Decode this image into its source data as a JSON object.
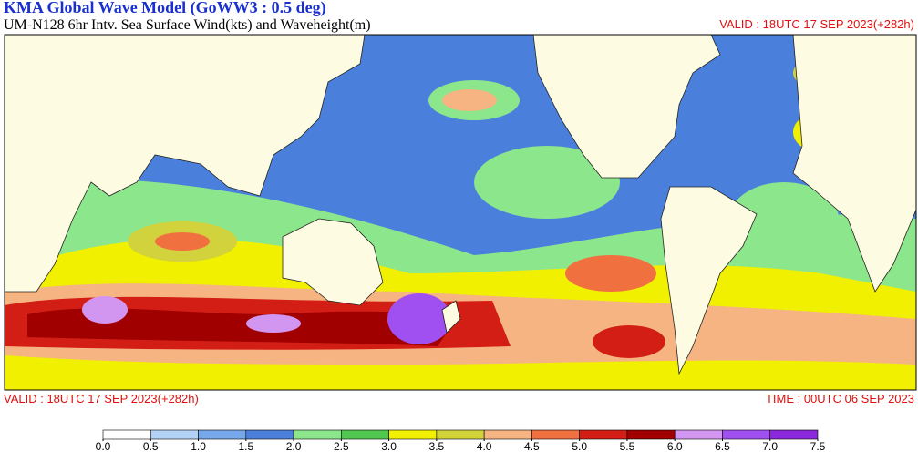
{
  "header": {
    "title": "KMA  Global Wave Model (GoWW3 : 0.5 deg)",
    "subtitle": "UM-N128  6hr Intv. Sea Surface Wind(kts) and Waveheight(m)",
    "valid_top": "VALID : 18UTC 17 SEP 2023(+282h)"
  },
  "footer": {
    "valid": "VALID : 18UTC 17 SEP 2023(+282h)",
    "time": "TIME : 00UTC 06 SEP 2023"
  },
  "colorbar": {
    "ticks": [
      {
        "value": 0,
        "label": "0.0"
      },
      0.5,
      {
        "value": 1,
        "label": "1.0"
      },
      1.5,
      {
        "value": 2,
        "label": "2.0"
      },
      2.5,
      {
        "value": 3,
        "label": "3.0"
      },
      3.5,
      {
        "value": 4,
        "label": "4.0"
      },
      4.5,
      {
        "value": 5,
        "label": "5.0"
      },
      5.5,
      {
        "value": 6,
        "label": "6.0"
      },
      6.5,
      {
        "value": 7,
        "label": "7.0"
      },
      7.5
    ],
    "colors": [
      "#ffffff",
      "#b4d2f5",
      "#78a8ec",
      "#4a80dc",
      "#8ce68c",
      "#50c850",
      "#f0f000",
      "#d2d23c",
      "#f5b482",
      "#f07040",
      "#d21e14",
      "#a00000",
      "#d296f0",
      "#a050f0",
      "#8c28dc"
    ]
  }
}
